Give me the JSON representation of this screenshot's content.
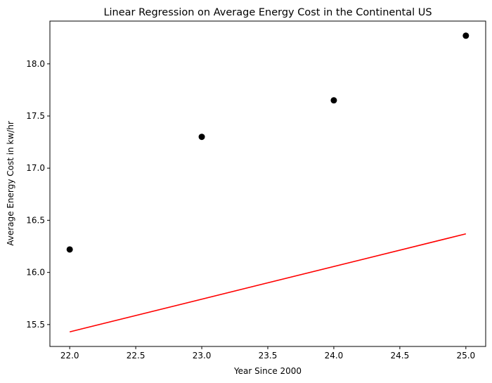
{
  "chart_data": {
    "type": "scatter",
    "title": "Linear Regression on Average Energy Cost in the Continental US",
    "xlabel": "Year Since 2000",
    "ylabel": "Average Energy Cost in kw/hr",
    "xlim": [
      21.85,
      25.15
    ],
    "ylim": [
      15.29,
      18.41
    ],
    "xticks": [
      "22.0",
      "22.5",
      "23.0",
      "23.5",
      "24.0",
      "24.5",
      "25.0"
    ],
    "yticks": [
      "15.5",
      "16.0",
      "16.5",
      "17.0",
      "17.5",
      "18.0"
    ],
    "grid": false,
    "series": [
      {
        "kind": "points",
        "color": "#000000",
        "x": [
          22,
          23,
          24,
          25
        ],
        "y": [
          16.22,
          17.3,
          17.65,
          18.27
        ]
      },
      {
        "kind": "line",
        "color": "#ff0000",
        "x": [
          22,
          25
        ],
        "y": [
          15.43,
          16.37
        ]
      }
    ]
  }
}
